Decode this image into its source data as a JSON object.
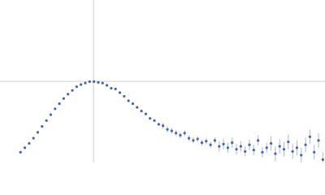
{
  "chart_data": {
    "type": "scatter",
    "color": "#4566b8",
    "error_color": "#a8badf",
    "x": [
      0.38,
      0.46,
      0.54,
      0.62,
      0.7,
      0.78,
      0.86,
      0.94,
      1.02,
      1.1,
      1.18,
      1.26,
      1.34,
      1.42,
      1.5,
      1.58,
      1.66,
      1.74,
      1.82,
      1.9,
      1.98,
      2.06,
      2.14,
      2.22,
      2.3,
      2.38,
      2.46,
      2.54,
      2.62,
      2.7,
      2.78,
      2.86,
      2.94,
      3.02,
      3.1,
      3.18,
      3.26,
      3.34,
      3.42,
      3.5,
      3.58,
      3.66,
      3.74,
      3.82,
      3.9,
      3.98,
      4.06,
      4.14,
      4.22,
      4.3,
      4.38,
      4.46,
      4.54,
      4.62,
      4.7,
      4.78,
      4.86,
      4.94,
      5.02,
      5.1,
      5.18,
      5.26,
      5.34,
      5.42,
      5.5,
      5.58,
      5.66,
      5.74,
      5.82,
      5.9,
      5.98
    ],
    "values": [
      0.14,
      0.2,
      0.26,
      0.33,
      0.41,
      0.49,
      0.57,
      0.65,
      0.73,
      0.8,
      0.87,
      0.93,
      0.98,
      1.03,
      1.06,
      1.08,
      1.1,
      1.1,
      1.09,
      1.08,
      1.05,
      1.01,
      1.0,
      0.95,
      0.9,
      0.84,
      0.8,
      0.75,
      0.7,
      0.66,
      0.6,
      0.57,
      0.52,
      0.5,
      0.45,
      0.43,
      0.4,
      0.37,
      0.4,
      0.33,
      0.3,
      0.32,
      0.27,
      0.29,
      0.24,
      0.3,
      0.22,
      0.25,
      0.2,
      0.27,
      0.18,
      0.22,
      0.15,
      0.24,
      0.17,
      0.3,
      0.14,
      0.2,
      0.26,
      0.12,
      0.22,
      0.18,
      0.28,
      0.15,
      0.2,
      0.1,
      0.24,
      0.35,
      0.14,
      0.3,
      0.04
    ],
    "errors": [
      0.005,
      0.005,
      0.005,
      0.005,
      0.005,
      0.005,
      0.005,
      0.005,
      0.005,
      0.005,
      0.005,
      0.005,
      0.005,
      0.005,
      0.005,
      0.005,
      0.005,
      0.005,
      0.005,
      0.005,
      0.005,
      0.015,
      0.015,
      0.015,
      0.015,
      0.015,
      0.015,
      0.015,
      0.015,
      0.015,
      0.015,
      0.015,
      0.015,
      0.04,
      0.04,
      0.04,
      0.04,
      0.04,
      0.04,
      0.04,
      0.04,
      0.04,
      0.04,
      0.04,
      0.04,
      0.04,
      0.07,
      0.07,
      0.07,
      0.07,
      0.07,
      0.07,
      0.07,
      0.07,
      0.07,
      0.07,
      0.07,
      0.07,
      0.1,
      0.1,
      0.1,
      0.1,
      0.1,
      0.1,
      0.1,
      0.1,
      0.1,
      0.1,
      0.1,
      0.1,
      0.1
    ],
    "xlim": [
      0,
      6.02
    ],
    "ylim": [
      0,
      2.21
    ],
    "vlines": [
      1.732
    ],
    "hlines": [
      1.104
    ]
  }
}
